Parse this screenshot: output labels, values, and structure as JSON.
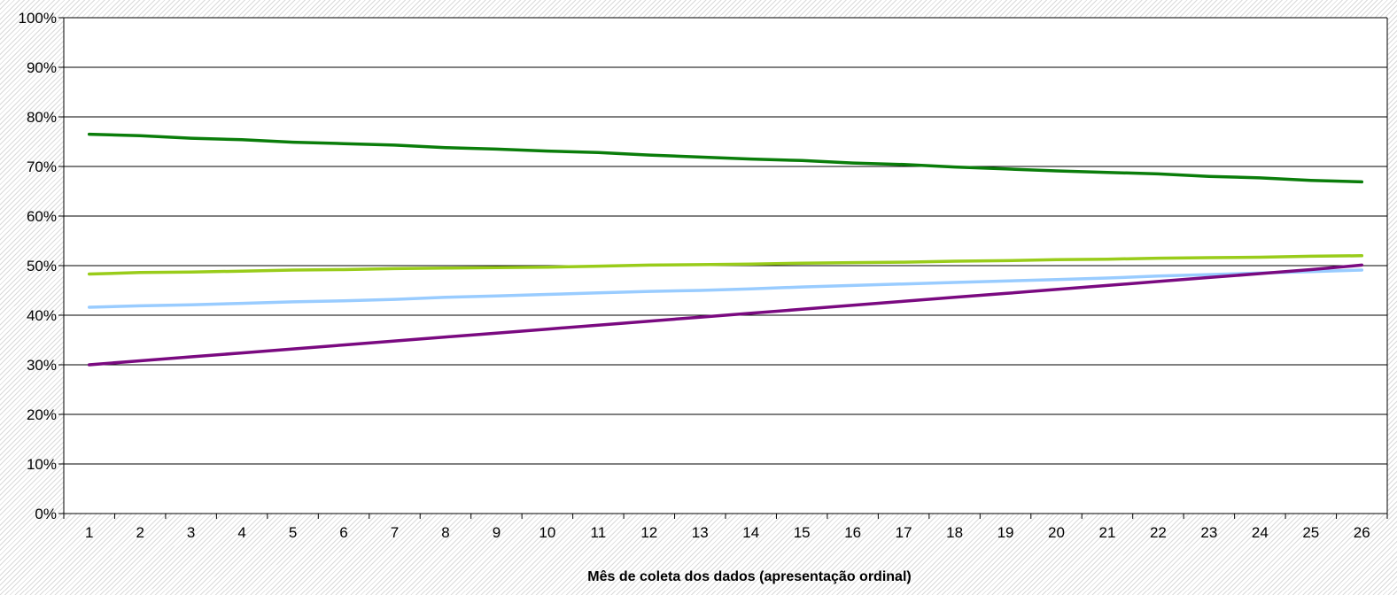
{
  "chart_data": {
    "type": "line",
    "title": "",
    "xlabel": "Mês de coleta dos dados (apresentação ordinal)",
    "ylabel": "",
    "x": [
      1,
      2,
      3,
      4,
      5,
      6,
      7,
      8,
      9,
      10,
      11,
      12,
      13,
      14,
      15,
      16,
      17,
      18,
      19,
      20,
      21,
      22,
      23,
      24,
      25,
      26
    ],
    "xticks": [
      "1",
      "2",
      "3",
      "4",
      "5",
      "6",
      "7",
      "8",
      "9",
      "10",
      "11",
      "12",
      "13",
      "14",
      "15",
      "16",
      "17",
      "18",
      "19",
      "20",
      "21",
      "22",
      "23",
      "24",
      "25",
      "26"
    ],
    "ylim": [
      0,
      100
    ],
    "yticks": [
      "0%",
      "10%",
      "20%",
      "30%",
      "40%",
      "50%",
      "60%",
      "70%",
      "80%",
      "90%",
      "100%"
    ],
    "grid": true,
    "legend": "none",
    "series": [
      {
        "color": "#0a7d0a",
        "values": [
          76.5,
          76.2,
          75.7,
          75.4,
          74.9,
          74.6,
          74.3,
          73.8,
          73.5,
          73.1,
          72.8,
          72.3,
          71.9,
          71.5,
          71.2,
          70.7,
          70.4,
          69.9,
          69.5,
          69.1,
          68.8,
          68.5,
          68.0,
          67.7,
          67.2,
          66.9
        ]
      },
      {
        "color": "#99cc1a",
        "values": [
          48.3,
          48.6,
          48.7,
          48.9,
          49.1,
          49.2,
          49.4,
          49.5,
          49.6,
          49.7,
          49.9,
          50.1,
          50.2,
          50.3,
          50.5,
          50.6,
          50.7,
          50.9,
          51.0,
          51.2,
          51.3,
          51.5,
          51.6,
          51.7,
          51.9,
          52.0
        ]
      },
      {
        "color": "#99ccff",
        "values": [
          41.6,
          41.9,
          42.1,
          42.4,
          42.7,
          42.9,
          43.2,
          43.6,
          43.9,
          44.2,
          44.5,
          44.8,
          45.0,
          45.3,
          45.7,
          46.0,
          46.3,
          46.6,
          46.9,
          47.2,
          47.5,
          47.9,
          48.2,
          48.5,
          48.8,
          49.1
        ]
      },
      {
        "color": "#7a0a80",
        "values": [
          30.0,
          30.8,
          31.6,
          32.4,
          33.2,
          34.0,
          34.8,
          35.6,
          36.4,
          37.2,
          38.0,
          38.8,
          39.6,
          40.4,
          41.2,
          42.0,
          42.8,
          43.6,
          44.4,
          45.2,
          46.0,
          46.8,
          47.6,
          48.4,
          49.2,
          50.1
        ]
      }
    ]
  }
}
